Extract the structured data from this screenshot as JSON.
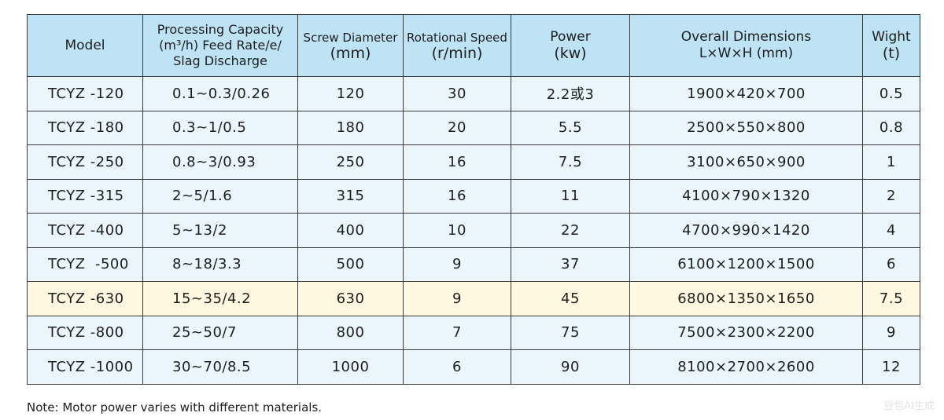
{
  "headers": {
    "model": "Model",
    "capacity_line1": "Processing Capacity",
    "capacity_line2": "(m³/h) Feed Rate/e/",
    "capacity_line3": "Slag Discharge",
    "screw_line1": "Screw Diameter",
    "screw_line2": "(mm)",
    "speed_line1": "Rotational Speed",
    "speed_line2": "(r/min)",
    "power_line1": "Power",
    "power_line2": "(kw)",
    "dims_line1": "Overall Dimensions",
    "dims_line2": "L×W×H (mm)",
    "weight_line1": "Wight",
    "weight_line2": "(t)"
  },
  "rows": [
    {
      "model": "TCYZ -120",
      "capacity": "0.1~0.3/0.26",
      "screw": "120",
      "speed": "30",
      "power": "2.2或3",
      "dims": "1900×420×700",
      "weight": "0.5"
    },
    {
      "model": "TCYZ -180",
      "capacity": "0.3~1/0.5",
      "screw": "180",
      "speed": "20",
      "power": "5.5",
      "dims": "2500×550×800",
      "weight": "0.8"
    },
    {
      "model": "TCYZ -250",
      "capacity": "0.8~3/0.93",
      "screw": "250",
      "speed": "16",
      "power": "7.5",
      "dims": "3100×650×900",
      "weight": "1"
    },
    {
      "model": "TCYZ -315",
      "capacity": "2~5/1.6",
      "screw": "315",
      "speed": "16",
      "power": "11",
      "dims": "4100×790×1320",
      "weight": "2"
    },
    {
      "model": "TCYZ -400",
      "capacity": "5~13/2",
      "screw": "400",
      "speed": "10",
      "power": "22",
      "dims": "4700×990×1420",
      "weight": "4"
    },
    {
      "model": "TCYZ  -500",
      "capacity": "8~18/3.3",
      "screw": "500",
      "speed": "9",
      "power": "37",
      "dims": "6100×1200×1500",
      "weight": "6"
    },
    {
      "model": "TCYZ -630",
      "capacity": "15~35/4.2",
      "screw": "630",
      "speed": "9",
      "power": "45",
      "dims": "6800×1350×1650",
      "weight": "7.5"
    },
    {
      "model": "TCYZ -800",
      "capacity": "25~50/7",
      "screw": "800",
      "speed": "7",
      "power": "75",
      "dims": "7500×2300×2200",
      "weight": "9"
    },
    {
      "model": "TCYZ -1000",
      "capacity": "30~70/8.5",
      "screw": "1000",
      "speed": "6",
      "power": "90",
      "dims": "8100×2700×2600",
      "weight": "12"
    }
  ],
  "note": "Note: Motor power varies with different materials.",
  "watermark": "豆包AI生成",
  "colors": {
    "header_bg": "#bde3f4",
    "row_bg": "#eaf6fc",
    "highlight_bg": "#fdf8df",
    "border": "#3a3a3a"
  }
}
